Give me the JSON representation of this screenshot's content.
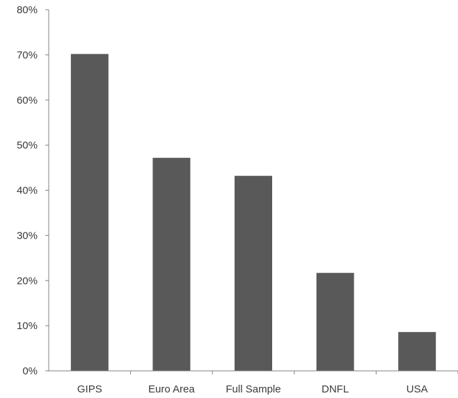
{
  "chart_data": {
    "type": "bar",
    "categories": [
      "GIPS",
      "Euro Area",
      "Full Sample",
      "DNFL",
      "USA"
    ],
    "values": [
      70.2,
      47.2,
      43.2,
      21.7,
      8.6
    ],
    "ylim": [
      0,
      80
    ],
    "yticks": [
      0,
      10,
      20,
      30,
      40,
      50,
      60,
      70,
      80
    ],
    "ytick_labels": [
      "0%",
      "10%",
      "20%",
      "30%",
      "40%",
      "50%",
      "60%",
      "70%",
      "80%"
    ],
    "title": "",
    "xlabel": "",
    "ylabel": "",
    "grid": false,
    "legend": "none",
    "bar_color": "#595959",
    "axis_color": "#808080"
  }
}
